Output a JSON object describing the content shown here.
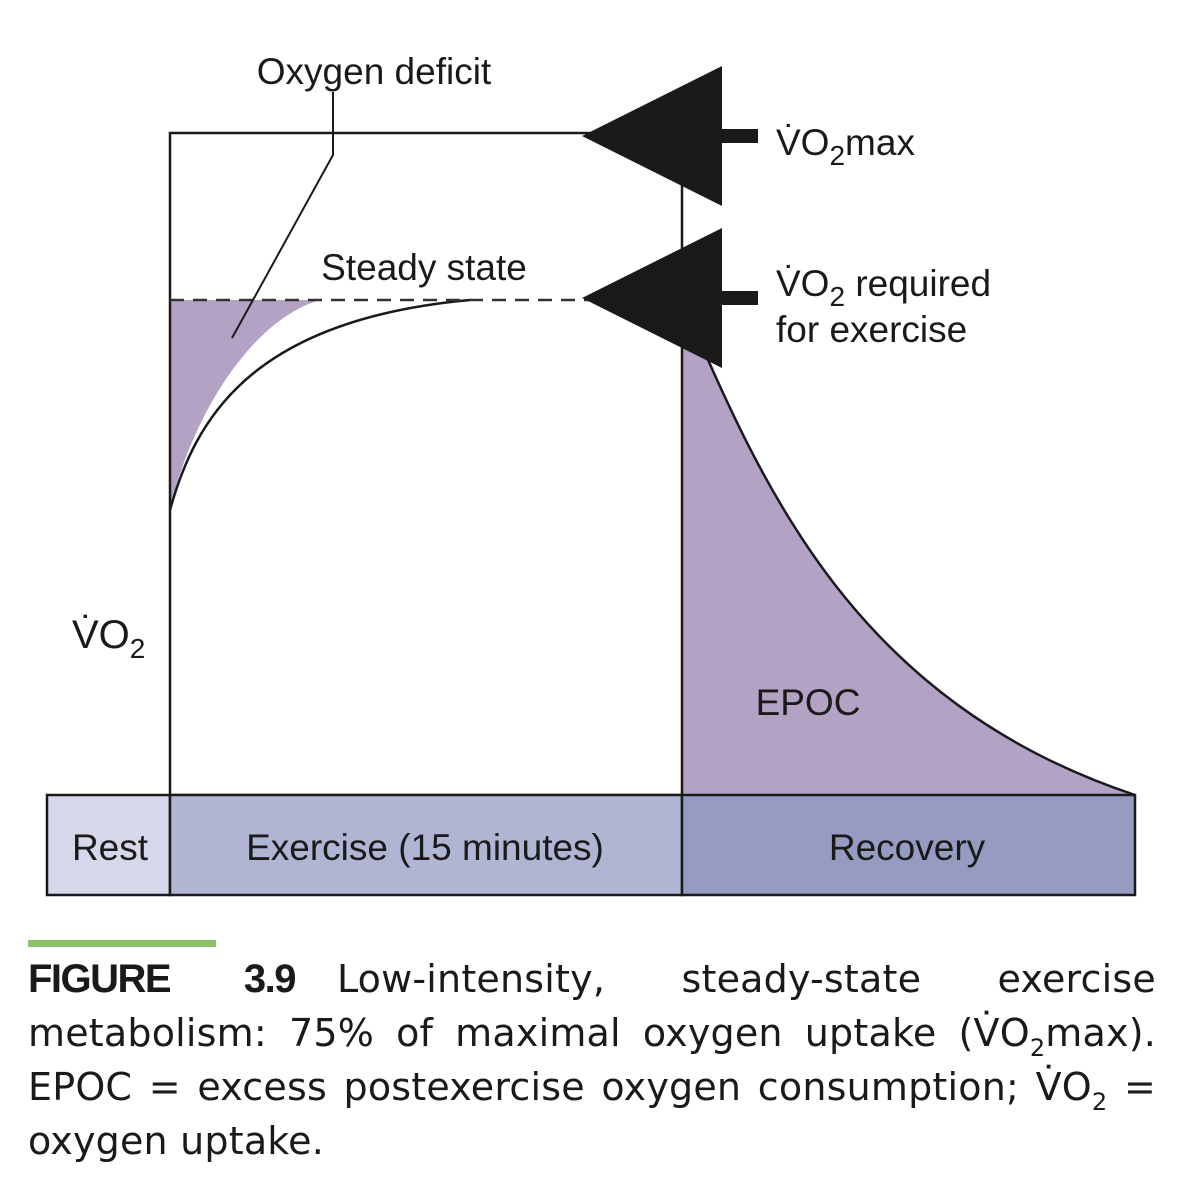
{
  "diagram": {
    "labels": {
      "oxygen_deficit": "Oxygen deficit",
      "steady_state": "Steady state",
      "vo2max": "V̇O",
      "vo2max_sub": "2",
      "vo2max_suffix": "max",
      "vo2_required": "V̇O",
      "vo2_required_sub": "2",
      "vo2_required_suffix": " required",
      "for_exercise": "for exercise",
      "y_axis": "V̇O",
      "y_axis_sub": "2",
      "epoc": "EPOC"
    },
    "phases": [
      {
        "label": "Rest",
        "color": "#d6d7ea"
      },
      {
        "label": "Exercise (15 minutes)",
        "color": "#b0b5d4"
      },
      {
        "label": "Recovery",
        "color": "#969bc2"
      }
    ],
    "fill_color": "#b3a2c4"
  },
  "caption": {
    "figure_number": "FIGURE 3.9",
    "text_part1": "Low-intensity, steady-state exercise metabolism: 75% of maximal oxygen uptake (",
    "vo2": "V̇O",
    "sub2": "2",
    "text_part2": "max). EPOC = excess postexercise oxygen consumption; ",
    "text_part3": " = oxygen uptake."
  }
}
